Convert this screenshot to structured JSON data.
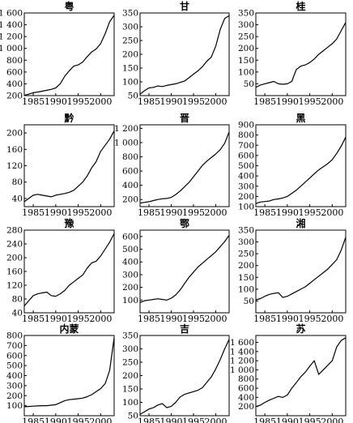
{
  "x_ticks": [
    1985,
    1990,
    1995,
    2000
  ],
  "chart_data": [
    {
      "type": "line",
      "title": "粤",
      "ylim": [
        200,
        1600
      ],
      "yticks": [
        200,
        400,
        600,
        800,
        1000,
        1200,
        1400,
        1600
      ],
      "ytick_labels": [
        "200",
        "400",
        "600",
        "800",
        "1 000",
        "1 200",
        "1 400",
        "1 600"
      ],
      "xlim": [
        1983,
        2003
      ],
      "x": [
        1983,
        1984,
        1985,
        1986,
        1987,
        1988,
        1989,
        1990,
        1991,
        1992,
        1993,
        1994,
        1995,
        1996,
        1997,
        1998,
        1999,
        2000,
        2001,
        2002,
        2003
      ],
      "y": [
        205,
        225,
        250,
        260,
        275,
        290,
        305,
        330,
        400,
        530,
        620,
        700,
        720,
        770,
        860,
        940,
        990,
        1080,
        1250,
        1450,
        1560
      ]
    },
    {
      "type": "line",
      "title": "甘",
      "ylim": [
        50,
        350
      ],
      "yticks": [
        50,
        100,
        150,
        200,
        250,
        300,
        350
      ],
      "ytick_labels": [
        "50",
        "100",
        "150",
        "200",
        "250",
        "300",
        "350"
      ],
      "xlim": [
        1983,
        2003
      ],
      "x": [
        1983,
        1984,
        1985,
        1986,
        1987,
        1988,
        1989,
        1990,
        1991,
        1992,
        1993,
        1994,
        1995,
        1996,
        1997,
        1998,
        1999,
        2000,
        2001,
        2002,
        2003
      ],
      "y": [
        55,
        68,
        78,
        80,
        85,
        83,
        87,
        90,
        93,
        98,
        103,
        115,
        128,
        140,
        155,
        175,
        190,
        230,
        290,
        330,
        340
      ]
    },
    {
      "type": "line",
      "title": "桂",
      "ylim": [
        0,
        350
      ],
      "yticks": [
        50,
        100,
        150,
        200,
        250,
        300,
        350
      ],
      "ytick_labels": [
        "50",
        "100",
        "150",
        "200",
        "250",
        "300",
        "350"
      ],
      "xlim": [
        1983,
        2003
      ],
      "x": [
        1983,
        1984,
        1985,
        1986,
        1987,
        1988,
        1989,
        1990,
        1991,
        1992,
        1993,
        1994,
        1995,
        1996,
        1997,
        1998,
        1999,
        2000,
        2001,
        2002,
        2003
      ],
      "y": [
        35,
        45,
        50,
        55,
        60,
        50,
        48,
        50,
        60,
        110,
        125,
        130,
        140,
        155,
        175,
        190,
        205,
        220,
        240,
        275,
        310
      ]
    },
    {
      "type": "line",
      "title": "黔",
      "ylim": [
        20,
        220
      ],
      "yticks": [
        40,
        80,
        120,
        160,
        200
      ],
      "ytick_labels": [
        "40",
        "80",
        "120",
        "160",
        "200"
      ],
      "xlim": [
        1983,
        2003
      ],
      "x": [
        1983,
        1984,
        1985,
        1986,
        1987,
        1988,
        1989,
        1990,
        1991,
        1992,
        1993,
        1994,
        1995,
        1996,
        1997,
        1998,
        1999,
        2000,
        2001,
        2002,
        2003
      ],
      "y": [
        32,
        40,
        48,
        50,
        48,
        46,
        44,
        48,
        50,
        52,
        55,
        60,
        70,
        80,
        95,
        115,
        130,
        155,
        170,
        185,
        205
      ]
    },
    {
      "type": "line",
      "title": "晋",
      "ylim": [
        100,
        1250
      ],
      "yticks": [
        200,
        400,
        600,
        800,
        1000,
        1200
      ],
      "ytick_labels": [
        "200",
        "400",
        "600",
        "800",
        "1 000",
        "1 200"
      ],
      "xlim": [
        1983,
        2003
      ],
      "x": [
        1983,
        1984,
        1985,
        1986,
        1987,
        1988,
        1989,
        1990,
        1991,
        1992,
        1993,
        1994,
        1995,
        1996,
        1997,
        1998,
        1999,
        2000,
        2001,
        2002,
        2003
      ],
      "y": [
        150,
        160,
        170,
        185,
        200,
        210,
        215,
        230,
        270,
        320,
        380,
        440,
        520,
        600,
        680,
        740,
        790,
        840,
        900,
        990,
        1150
      ]
    },
    {
      "type": "line",
      "title": "黑",
      "ylim": [
        100,
        900
      ],
      "yticks": [
        100,
        200,
        300,
        400,
        500,
        600,
        700,
        800,
        900
      ],
      "ytick_labels": [
        "100",
        "200",
        "300",
        "400",
        "500",
        "600",
        "700",
        "800",
        "900"
      ],
      "xlim": [
        1983,
        2003
      ],
      "x": [
        1983,
        1984,
        1985,
        1986,
        1987,
        1988,
        1989,
        1990,
        1991,
        1992,
        1993,
        1994,
        1995,
        1996,
        1997,
        1998,
        1999,
        2000,
        2001,
        2002,
        2003
      ],
      "y": [
        130,
        145,
        150,
        155,
        170,
        175,
        185,
        200,
        230,
        260,
        300,
        340,
        380,
        420,
        460,
        490,
        520,
        560,
        620,
        690,
        780
      ]
    },
    {
      "type": "line",
      "title": "豫",
      "ylim": [
        40,
        280
      ],
      "yticks": [
        40,
        80,
        120,
        160,
        200,
        240,
        280
      ],
      "ytick_labels": [
        "40",
        "80",
        "120",
        "160",
        "200",
        "240",
        "280"
      ],
      "xlim": [
        1983,
        2003
      ],
      "x": [
        1983,
        1984,
        1985,
        1986,
        1987,
        1988,
        1989,
        1990,
        1991,
        1992,
        1993,
        1994,
        1995,
        1996,
        1997,
        1998,
        1999,
        2000,
        2001,
        2002,
        2003
      ],
      "y": [
        60,
        75,
        90,
        95,
        98,
        100,
        90,
        88,
        95,
        105,
        120,
        130,
        140,
        150,
        170,
        185,
        190,
        205,
        225,
        245,
        270
      ]
    },
    {
      "type": "line",
      "title": "鄂",
      "ylim": [
        0,
        650
      ],
      "yticks": [
        100,
        200,
        300,
        400,
        500,
        600
      ],
      "ytick_labels": [
        "100",
        "200",
        "300",
        "400",
        "500",
        "600"
      ],
      "xlim": [
        1983,
        2003
      ],
      "x": [
        1983,
        1984,
        1985,
        1986,
        1987,
        1988,
        1989,
        1990,
        1991,
        1992,
        1993,
        1994,
        1995,
        1996,
        1997,
        1998,
        1999,
        2000,
        2001,
        2002,
        2003
      ],
      "y": [
        80,
        95,
        100,
        105,
        110,
        105,
        100,
        115,
        140,
        180,
        230,
        280,
        320,
        360,
        390,
        420,
        450,
        480,
        520,
        560,
        610
      ]
    },
    {
      "type": "line",
      "title": "湘",
      "ylim": [
        0,
        350
      ],
      "yticks": [
        50,
        100,
        150,
        200,
        250,
        300,
        350
      ],
      "ytick_labels": [
        "50",
        "100",
        "150",
        "200",
        "250",
        "300",
        "350"
      ],
      "xlim": [
        1983,
        2003
      ],
      "x": [
        1983,
        1984,
        1985,
        1986,
        1987,
        1988,
        1989,
        1990,
        1991,
        1992,
        1993,
        1994,
        1995,
        1996,
        1997,
        1998,
        1999,
        2000,
        2001,
        2002,
        2003
      ],
      "y": [
        55,
        60,
        70,
        78,
        82,
        85,
        65,
        70,
        80,
        90,
        100,
        110,
        125,
        140,
        155,
        170,
        185,
        205,
        225,
        265,
        320
      ]
    },
    {
      "type": "line",
      "title": "内蒙",
      "ylim": [
        0,
        800
      ],
      "yticks": [
        100,
        200,
        300,
        400,
        500,
        600,
        700,
        800
      ],
      "ytick_labels": [
        "100",
        "200",
        "300",
        "400",
        "500",
        "600",
        "700",
        "800"
      ],
      "xlim": [
        1983,
        2003
      ],
      "x": [
        1983,
        1984,
        1985,
        1986,
        1987,
        1988,
        1989,
        1990,
        1991,
        1992,
        1993,
        1994,
        1995,
        1996,
        1997,
        1998,
        1999,
        2000,
        2001,
        2002,
        2003
      ],
      "y": [
        90,
        92,
        95,
        98,
        100,
        100,
        105,
        110,
        130,
        150,
        160,
        165,
        170,
        175,
        190,
        210,
        240,
        270,
        320,
        450,
        780
      ]
    },
    {
      "type": "line",
      "title": "吉",
      "ylim": [
        50,
        350
      ],
      "yticks": [
        50,
        100,
        150,
        200,
        250,
        300,
        350
      ],
      "ytick_labels": [
        "50",
        "100",
        "150",
        "200",
        "250",
        "300",
        "350"
      ],
      "xlim": [
        1983,
        2003
      ],
      "x": [
        1983,
        1984,
        1985,
        1986,
        1987,
        1988,
        1989,
        1990,
        1991,
        1992,
        1993,
        1994,
        1995,
        1996,
        1997,
        1998,
        1999,
        2000,
        2001,
        2002,
        2003
      ],
      "y": [
        55,
        65,
        75,
        80,
        90,
        95,
        80,
        85,
        100,
        120,
        130,
        135,
        140,
        145,
        155,
        175,
        195,
        225,
        260,
        300,
        335
      ]
    },
    {
      "type": "line",
      "title": "苏",
      "ylim": [
        0,
        1750
      ],
      "yticks": [
        200,
        400,
        600,
        800,
        1000,
        1200,
        1400,
        1600
      ],
      "ytick_labels": [
        "200",
        "400",
        "600",
        "800",
        "1 000",
        "1 200",
        "1 400",
        "1 600"
      ],
      "xlim": [
        1983,
        2003
      ],
      "x": [
        1983,
        1984,
        1985,
        1986,
        1987,
        1988,
        1989,
        1990,
        1991,
        1992,
        1993,
        1994,
        1995,
        1996,
        1997,
        1998,
        1999,
        2000,
        2001,
        2002,
        2003
      ],
      "y": [
        200,
        230,
        290,
        340,
        380,
        420,
        400,
        450,
        600,
        720,
        850,
        950,
        1080,
        1200,
        900,
        1000,
        1100,
        1200,
        1500,
        1640,
        1700
      ]
    }
  ]
}
